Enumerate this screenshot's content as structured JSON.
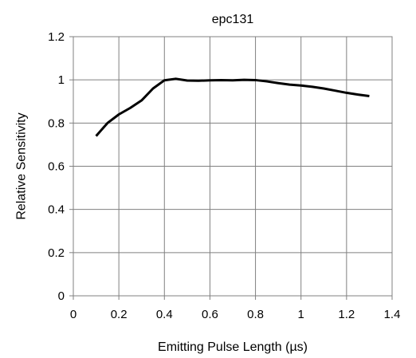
{
  "chart_data": {
    "type": "line",
    "title": "epc131",
    "xlabel": "Emitting Pulse Length (µs)",
    "ylabel": "Relative Sensitivity",
    "xlim": [
      0,
      1.4
    ],
    "ylim": [
      0,
      1.2
    ],
    "xticks": [
      "0",
      "0.2",
      "0.4",
      "0.6",
      "0.8",
      "1",
      "1.2",
      "1.4"
    ],
    "yticks": [
      "0",
      "0.2",
      "0.4",
      "0.6",
      "0.8",
      "1",
      "1.2"
    ],
    "xtick_values": [
      0,
      0.2,
      0.4,
      0.6,
      0.8,
      1.0,
      1.2,
      1.4
    ],
    "ytick_values": [
      0,
      0.2,
      0.4,
      0.6,
      0.8,
      1.0,
      1.2
    ],
    "grid": true,
    "legend": "none",
    "line_color": "#000000",
    "grid_color": "#808080",
    "series": [
      {
        "x": [
          0.1,
          0.15,
          0.2,
          0.25,
          0.3,
          0.35,
          0.4,
          0.45,
          0.5,
          0.55,
          0.6,
          0.65,
          0.7,
          0.75,
          0.8,
          0.85,
          0.9,
          0.95,
          1.0,
          1.05,
          1.1,
          1.15,
          1.2,
          1.25,
          1.3
        ],
        "values": [
          0.74,
          0.8,
          0.84,
          0.87,
          0.905,
          0.96,
          0.998,
          1.005,
          0.997,
          0.996,
          0.998,
          0.999,
          0.998,
          1.0,
          0.999,
          0.993,
          0.985,
          0.978,
          0.974,
          0.968,
          0.96,
          0.95,
          0.94,
          0.932,
          0.925
        ]
      }
    ]
  }
}
